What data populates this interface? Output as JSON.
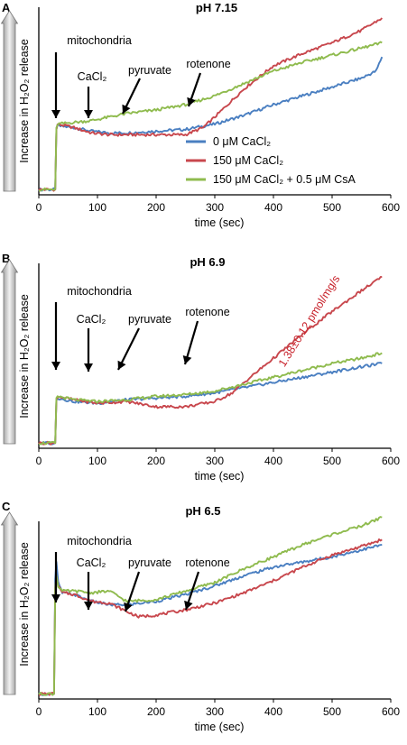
{
  "colors": {
    "blue": "#4a7fc1",
    "red": "#c8474d",
    "green": "#8fbb4e",
    "arrow_fill": "#a9a9a9",
    "axis": "#000000",
    "annotation_red": "#c8232c"
  },
  "legend": {
    "items": [
      {
        "label": "0 μM CaCl₂",
        "color": "#4a7fc1"
      },
      {
        "label": "150 μM CaCl₂",
        "color": "#c8474d"
      },
      {
        "label": "150 μM CaCl₂ + 0.5 μM CsA",
        "color": "#8fbb4e"
      }
    ]
  },
  "chart_data": [
    {
      "type": "line",
      "panel_letter": "A",
      "title": "pH 7.15",
      "xlabel": "time (sec)",
      "ylabel": "Increase in H₂O₂ release",
      "xlim": [
        0,
        600
      ],
      "ylim": [
        0,
        100
      ],
      "xticks": [
        0,
        100,
        200,
        300,
        400,
        500,
        600
      ],
      "annotations": [
        {
          "label": "mitochondria",
          "x": 30
        },
        {
          "label": "CaCl₂",
          "x": 88
        },
        {
          "label": "pyruvate",
          "x": 145
        },
        {
          "label": "rotenone",
          "x": 255
        }
      ],
      "series": [
        {
          "name": "0 μM CaCl₂",
          "color": "#4a7fc1",
          "x": [
            0,
            28,
            30,
            32,
            60,
            90,
            120,
            150,
            200,
            250,
            300,
            350,
            400,
            450,
            500,
            550,
            575,
            585
          ],
          "y": [
            3,
            3,
            37,
            39,
            38,
            36,
            35,
            35,
            36,
            37,
            40,
            45,
            51,
            56,
            61,
            66,
            70,
            78
          ]
        },
        {
          "name": "150 μM CaCl₂",
          "color": "#c8474d",
          "x": [
            0,
            28,
            30,
            32,
            60,
            90,
            120,
            150,
            200,
            250,
            280,
            300,
            350,
            400,
            450,
            500,
            550,
            585
          ],
          "y": [
            3,
            3,
            37,
            40,
            38,
            35,
            34,
            34,
            34,
            34,
            38,
            44,
            60,
            73,
            80,
            86,
            93,
            100
          ]
        },
        {
          "name": "150 μM CaCl₂ + 0.5 μM CsA",
          "color": "#8fbb4e",
          "x": [
            0,
            28,
            30,
            32,
            60,
            90,
            120,
            150,
            200,
            250,
            300,
            350,
            400,
            450,
            500,
            550,
            585
          ],
          "y": [
            3,
            3,
            38,
            40,
            41,
            42,
            44,
            46,
            48,
            51,
            56,
            63,
            70,
            75,
            79,
            83,
            86
          ]
        }
      ]
    },
    {
      "type": "line",
      "panel_letter": "B",
      "title": "pH 6.9",
      "xlabel": "time (sec)",
      "ylabel": "Increase in H₂O₂ release",
      "xlim": [
        0,
        600
      ],
      "ylim": [
        0,
        100
      ],
      "xticks": [
        0,
        100,
        200,
        300,
        400,
        500,
        600
      ],
      "annotations": [
        {
          "label": "mitochondria",
          "x": 30
        },
        {
          "label": "CaCl₂",
          "x": 85
        },
        {
          "label": "pyruvate",
          "x": 135
        },
        {
          "label": "rotenone",
          "x": 240
        }
      ],
      "rate_label": "1.38±0.12 pmol/mg/s",
      "series": [
        {
          "name": "0 μM CaCl₂",
          "color": "#4a7fc1",
          "x": [
            0,
            28,
            30,
            32,
            60,
            100,
            150,
            200,
            250,
            300,
            350,
            400,
            450,
            500,
            550,
            585
          ],
          "y": [
            3,
            3,
            28,
            29,
            27,
            26,
            28,
            29,
            30,
            32,
            35,
            38,
            41,
            44,
            47,
            49
          ]
        },
        {
          "name": "150 μM CaCl₂",
          "color": "#c8474d",
          "x": [
            0,
            28,
            30,
            32,
            60,
            100,
            150,
            200,
            250,
            300,
            330,
            350,
            400,
            450,
            500,
            550,
            585
          ],
          "y": [
            3,
            3,
            28,
            30,
            28,
            26,
            27,
            24,
            24,
            27,
            32,
            38,
            52,
            66,
            79,
            91,
            99
          ]
        },
        {
          "name": "150 μM CaCl₂ + 0.5 μM CsA",
          "color": "#8fbb4e",
          "x": [
            0,
            28,
            30,
            32,
            60,
            100,
            150,
            200,
            250,
            300,
            350,
            400,
            450,
            500,
            550,
            585
          ],
          "y": [
            3,
            3,
            29,
            30,
            28,
            27,
            28,
            30,
            31,
            33,
            37,
            41,
            45,
            49,
            52,
            55
          ]
        }
      ]
    },
    {
      "type": "line",
      "panel_letter": "C",
      "title": "pH 6.5",
      "xlabel": "time (sec)",
      "ylabel": "Increase in H₂O₂ release",
      "xlim": [
        0,
        600
      ],
      "ylim": [
        0,
        100
      ],
      "xticks": [
        0,
        100,
        200,
        300,
        400,
        500,
        600
      ],
      "annotations": [
        {
          "label": "mitochondria",
          "x": 30
        },
        {
          "label": "CaCl₂",
          "x": 85
        },
        {
          "label": "pyruvate",
          "x": 142
        },
        {
          "label": "rotenone",
          "x": 245
        }
      ],
      "series": [
        {
          "name": "0 μM CaCl₂",
          "color": "#4a7fc1",
          "x": [
            0,
            26,
            28,
            30,
            33,
            40,
            60,
            90,
            120,
            150,
            200,
            250,
            300,
            350,
            400,
            450,
            500,
            550,
            585
          ],
          "y": [
            3,
            3,
            70,
            80,
            68,
            62,
            61,
            57,
            55,
            55,
            57,
            61,
            66,
            72,
            77,
            80,
            83,
            87,
            90
          ]
        },
        {
          "name": "150 μM CaCl₂",
          "color": "#c8474d",
          "x": [
            0,
            26,
            28,
            30,
            33,
            40,
            60,
            90,
            120,
            150,
            170,
            200,
            250,
            300,
            350,
            400,
            450,
            500,
            550,
            585
          ],
          "y": [
            3,
            3,
            65,
            72,
            66,
            62,
            61,
            57,
            56,
            51,
            48,
            49,
            52,
            56,
            62,
            69,
            77,
            84,
            89,
            93
          ]
        },
        {
          "name": "150 μM CaCl₂ + 0.5 μM CsA",
          "color": "#8fbb4e",
          "x": [
            0,
            26,
            28,
            30,
            33,
            40,
            60,
            90,
            120,
            150,
            200,
            250,
            300,
            350,
            400,
            450,
            500,
            550,
            585
          ],
          "y": [
            3,
            3,
            64,
            72,
            66,
            63,
            63,
            62,
            63,
            57,
            58,
            63,
            68,
            76,
            83,
            90,
            96,
            101,
            106
          ]
        }
      ]
    }
  ]
}
